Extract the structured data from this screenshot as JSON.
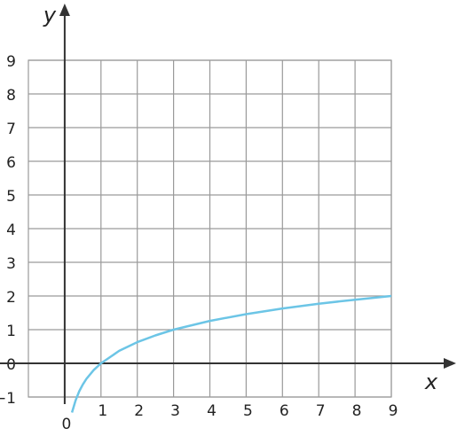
{
  "chart_data": {
    "type": "line",
    "x_label": "x",
    "y_label": "y",
    "xlim": [
      -1,
      9
    ],
    "ylim": [
      -1,
      9
    ],
    "xticks": [
      0,
      1,
      2,
      3,
      4,
      5,
      6,
      7,
      8,
      9
    ],
    "yticks": [
      {
        "value": -1,
        "label": "−1"
      },
      0,
      1,
      2,
      3,
      4,
      5,
      6,
      7,
      8,
      9
    ],
    "grid": true,
    "series": [
      {
        "color": "#6cc5e6",
        "x": [
          0.2,
          0.3,
          0.4,
          0.5,
          0.6,
          0.8,
          1,
          1.5,
          2,
          2.5,
          3,
          4,
          5,
          6,
          7,
          8,
          9
        ],
        "values": [
          -1.46,
          -1.1,
          -0.83,
          -0.63,
          -0.46,
          -0.2,
          0,
          0.37,
          0.63,
          0.83,
          1,
          1.26,
          1.46,
          1.63,
          1.77,
          1.89,
          2
        ]
      }
    ]
  }
}
